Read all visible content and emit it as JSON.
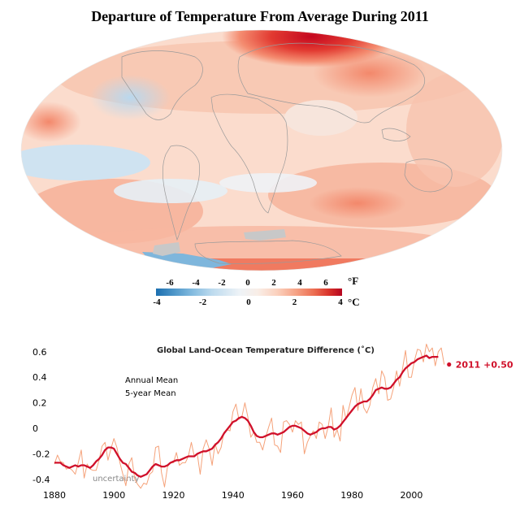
{
  "map": {
    "title": "Departure of Temperature From Average During 2011",
    "colorbar": {
      "f_unit": "°F",
      "c_unit": "°C",
      "f_ticks": [
        "-6",
        "-4",
        "-2",
        "0",
        "2",
        "4",
        "6"
      ],
      "c_ticks": [
        "-4",
        "-2",
        "0",
        "2",
        "4"
      ],
      "colors": [
        "#1c6fb0",
        "#4f97c9",
        "#86bde0",
        "#bcdaee",
        "#e6f0f6",
        "#f7ebe4",
        "#fbd1be",
        "#f6a487",
        "#ec6d51",
        "#d8322a",
        "#b5051f"
      ]
    },
    "colors": {
      "warm": "#f8b49c",
      "cool": "#cfe3f1",
      "hot": "#cc0b22",
      "missing": "#c8c8c8"
    }
  },
  "chart_data": {
    "type": "line",
    "title": "Global Land-Ocean Temperature Difference (˚C)",
    "x_ticks": [
      "1880",
      "1900",
      "1920",
      "1940",
      "1960",
      "1980",
      "2000"
    ],
    "y_ticks": [
      "0.6",
      "0.4",
      "0.2",
      "0",
      "-0.2",
      "-0.4"
    ],
    "xlim": [
      1880,
      2012
    ],
    "ylim": [
      -0.4,
      0.6
    ],
    "annotation": "2011 +0.50",
    "uncertainty_label": "uncertainty",
    "series": [
      {
        "name": "Annual Mean",
        "color": "#f5a27a",
        "x": [
          1880,
          1881,
          1882,
          1883,
          1884,
          1885,
          1886,
          1887,
          1888,
          1889,
          1890,
          1891,
          1892,
          1893,
          1894,
          1895,
          1896,
          1897,
          1898,
          1899,
          1900,
          1901,
          1902,
          1903,
          1904,
          1905,
          1906,
          1907,
          1908,
          1909,
          1910,
          1911,
          1912,
          1913,
          1914,
          1915,
          1916,
          1917,
          1918,
          1919,
          1920,
          1921,
          1922,
          1923,
          1924,
          1925,
          1926,
          1927,
          1928,
          1929,
          1930,
          1931,
          1932,
          1933,
          1934,
          1935,
          1936,
          1937,
          1938,
          1939,
          1940,
          1941,
          1942,
          1943,
          1944,
          1945,
          1946,
          1947,
          1948,
          1949,
          1950,
          1951,
          1952,
          1953,
          1954,
          1955,
          1956,
          1957,
          1958,
          1959,
          1960,
          1961,
          1962,
          1963,
          1964,
          1965,
          1966,
          1967,
          1968,
          1969,
          1970,
          1971,
          1972,
          1973,
          1974,
          1975,
          1976,
          1977,
          1978,
          1979,
          1980,
          1981,
          1982,
          1983,
          1984,
          1985,
          1986,
          1987,
          1988,
          1989,
          1990,
          1991,
          1992,
          1993,
          1994,
          1995,
          1996,
          1997,
          1998,
          1999,
          2000,
          2001,
          2002,
          2003,
          2004,
          2005,
          2006,
          2007,
          2008,
          2009,
          2010,
          2011
        ],
        "values": [
          -0.28,
          -0.21,
          -0.26,
          -0.27,
          -0.32,
          -0.31,
          -0.33,
          -0.36,
          -0.27,
          -0.17,
          -0.39,
          -0.28,
          -0.32,
          -0.33,
          -0.33,
          -0.25,
          -0.14,
          -0.11,
          -0.25,
          -0.16,
          -0.08,
          -0.15,
          -0.27,
          -0.36,
          -0.45,
          -0.28,
          -0.23,
          -0.4,
          -0.44,
          -0.47,
          -0.43,
          -0.44,
          -0.36,
          -0.34,
          -0.15,
          -0.14,
          -0.35,
          -0.46,
          -0.3,
          -0.27,
          -0.27,
          -0.19,
          -0.29,
          -0.27,
          -0.27,
          -0.22,
          -0.11,
          -0.22,
          -0.2,
          -0.36,
          -0.16,
          -0.09,
          -0.16,
          -0.29,
          -0.12,
          -0.2,
          -0.15,
          -0.03,
          -0.01,
          -0.02,
          0.13,
          0.19,
          0.07,
          0.09,
          0.2,
          0.09,
          -0.07,
          -0.03,
          -0.11,
          -0.11,
          -0.17,
          -0.07,
          0.01,
          0.08,
          -0.13,
          -0.14,
          -0.19,
          0.05,
          0.06,
          0.03,
          -0.03,
          0.06,
          0.03,
          0.05,
          -0.2,
          -0.11,
          -0.06,
          -0.02,
          -0.08,
          0.05,
          0.03,
          -0.08,
          0.01,
          0.16,
          -0.07,
          -0.01,
          -0.1,
          0.18,
          0.07,
          0.16,
          0.26,
          0.32,
          0.14,
          0.31,
          0.16,
          0.12,
          0.18,
          0.32,
          0.39,
          0.27,
          0.45,
          0.4,
          0.22,
          0.23,
          0.32,
          0.45,
          0.33,
          0.47,
          0.61,
          0.4,
          0.4,
          0.53,
          0.62,
          0.61,
          0.52,
          0.66,
          0.6,
          0.63,
          0.49,
          0.6,
          0.63,
          0.5
        ]
      },
      {
        "name": "5-year Mean",
        "color": "#d0102a",
        "x": [
          1880,
          1881,
          1882,
          1883,
          1884,
          1885,
          1886,
          1887,
          1888,
          1889,
          1890,
          1891,
          1892,
          1893,
          1894,
          1895,
          1896,
          1897,
          1898,
          1899,
          1900,
          1901,
          1902,
          1903,
          1904,
          1905,
          1906,
          1907,
          1908,
          1909,
          1910,
          1911,
          1912,
          1913,
          1914,
          1915,
          1916,
          1917,
          1918,
          1919,
          1920,
          1921,
          1922,
          1923,
          1924,
          1925,
          1926,
          1927,
          1928,
          1929,
          1930,
          1931,
          1932,
          1933,
          1934,
          1935,
          1936,
          1937,
          1938,
          1939,
          1940,
          1941,
          1942,
          1943,
          1944,
          1945,
          1946,
          1947,
          1948,
          1949,
          1950,
          1951,
          1952,
          1953,
          1954,
          1955,
          1956,
          1957,
          1958,
          1959,
          1960,
          1961,
          1962,
          1963,
          1964,
          1965,
          1966,
          1967,
          1968,
          1969,
          1970,
          1971,
          1972,
          1973,
          1974,
          1975,
          1976,
          1977,
          1978,
          1979,
          1980,
          1981,
          1982,
          1983,
          1984,
          1985,
          1986,
          1987,
          1988,
          1989,
          1990,
          1991,
          1992,
          1993,
          1994,
          1995,
          1996,
          1997,
          1998,
          1999,
          2000,
          2001,
          2002,
          2003,
          2004,
          2005,
          2006,
          2007,
          2008,
          2009
        ],
        "values": [
          -0.27,
          -0.27,
          -0.27,
          -0.29,
          -0.3,
          -0.31,
          -0.3,
          -0.29,
          -0.3,
          -0.29,
          -0.29,
          -0.3,
          -0.31,
          -0.29,
          -0.26,
          -0.24,
          -0.21,
          -0.17,
          -0.15,
          -0.15,
          -0.16,
          -0.2,
          -0.24,
          -0.27,
          -0.28,
          -0.31,
          -0.34,
          -0.35,
          -0.37,
          -0.38,
          -0.37,
          -0.36,
          -0.33,
          -0.3,
          -0.28,
          -0.29,
          -0.3,
          -0.3,
          -0.29,
          -0.27,
          -0.26,
          -0.25,
          -0.25,
          -0.24,
          -0.23,
          -0.22,
          -0.22,
          -0.22,
          -0.2,
          -0.19,
          -0.18,
          -0.18,
          -0.17,
          -0.16,
          -0.13,
          -0.11,
          -0.08,
          -0.04,
          -0.01,
          0.02,
          0.05,
          0.06,
          0.08,
          0.09,
          0.08,
          0.06,
          0.02,
          -0.03,
          -0.06,
          -0.07,
          -0.07,
          -0.06,
          -0.05,
          -0.04,
          -0.04,
          -0.05,
          -0.04,
          -0.03,
          -0.01,
          0.01,
          0.02,
          0.02,
          0.01,
          0.0,
          -0.02,
          -0.04,
          -0.05,
          -0.04,
          -0.03,
          -0.01,
          0.0,
          0.0,
          0.01,
          0.01,
          -0.01,
          0.0,
          0.02,
          0.05,
          0.08,
          0.11,
          0.14,
          0.17,
          0.19,
          0.2,
          0.21,
          0.21,
          0.23,
          0.26,
          0.3,
          0.31,
          0.32,
          0.31,
          0.31,
          0.32,
          0.35,
          0.38,
          0.4,
          0.44,
          0.47,
          0.49,
          0.51,
          0.52,
          0.54,
          0.55,
          0.56,
          0.57,
          0.55,
          0.56,
          0.56,
          0.56
        ]
      }
    ],
    "dot_year": 2011,
    "dot_value": 0.5
  }
}
